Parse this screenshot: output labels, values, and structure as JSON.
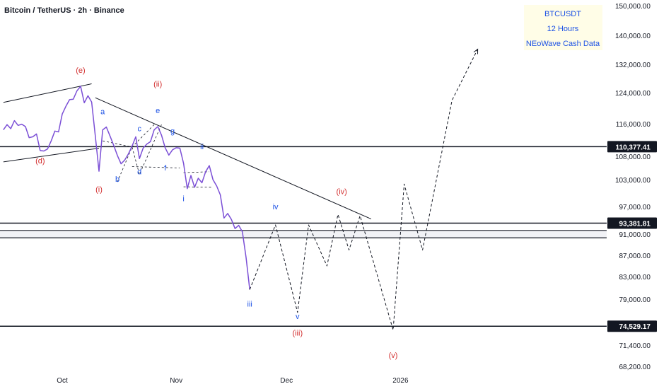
{
  "chart_data": {
    "type": "line",
    "title": "Bitcoin / TetherUS · 2h · Binance",
    "info_box": [
      "BTCUSDT",
      "12 Hours",
      "NEoWave Cash Data"
    ],
    "y_tick_labels": [
      150000,
      140000,
      132000,
      124000,
      116000,
      108000,
      103000,
      97000,
      91000,
      87000,
      83000,
      79000,
      71400,
      68200
    ],
    "y_tick_text": [
      "150,000.00",
      "140,000.00",
      "132,000.00",
      "124,000.00",
      "116,000.00",
      "108,000.00",
      "103,000.00",
      "97,000.00",
      "91,000.00",
      "87,000.00",
      "83,000.00",
      "79,000.00",
      "71,400.00",
      "68,200.00"
    ],
    "x_tick_labels": [
      "Oct",
      "Nov",
      "Dec",
      "2026"
    ],
    "x_tick_dates": [
      "2025-10-01",
      "2025-11-01",
      "2025-12-01",
      "2026-01-01"
    ],
    "price_levels": [
      {
        "value": 110377.41,
        "label": "110,377.41"
      },
      {
        "value": 93381.81,
        "label": "93,381.81"
      },
      {
        "value": 74529.17,
        "label": "74,529.17"
      }
    ],
    "support_band": [
      91800,
      90300
    ],
    "series": [
      {
        "values": [
          [
            "2025-09-15",
            114500
          ],
          [
            "2025-09-16",
            115800
          ],
          [
            "2025-09-17",
            114800
          ],
          [
            "2025-09-18",
            116800
          ],
          [
            "2025-09-19",
            115600
          ],
          [
            "2025-09-20",
            115900
          ],
          [
            "2025-09-21",
            115300
          ],
          [
            "2025-09-22",
            112600
          ],
          [
            "2025-09-23",
            112800
          ],
          [
            "2025-09-24",
            113500
          ],
          [
            "2025-09-25",
            109400
          ],
          [
            "2025-09-26",
            109300
          ],
          [
            "2025-09-27",
            109800
          ],
          [
            "2025-09-28",
            111800
          ],
          [
            "2025-09-29",
            114200
          ],
          [
            "2025-09-30",
            114000
          ],
          [
            "2025-10-01",
            118500
          ],
          [
            "2025-10-02",
            120500
          ],
          [
            "2025-10-03",
            122200
          ],
          [
            "2025-10-04",
            122300
          ],
          [
            "2025-10-05",
            124500
          ],
          [
            "2025-10-06",
            125800
          ],
          [
            "2025-10-07",
            121400
          ],
          [
            "2025-10-08",
            123200
          ],
          [
            "2025-10-09",
            121600
          ],
          [
            "2025-10-10",
            113000
          ],
          [
            "2025-10-11",
            104800
          ],
          [
            "2025-10-12",
            114500
          ],
          [
            "2025-10-13",
            115200
          ],
          [
            "2025-10-14",
            113000
          ],
          [
            "2025-10-15",
            110700
          ],
          [
            "2025-10-16",
            108200
          ],
          [
            "2025-10-17",
            106400
          ],
          [
            "2025-10-18",
            107200
          ],
          [
            "2025-10-19",
            108600
          ],
          [
            "2025-10-20",
            110500
          ],
          [
            "2025-10-21",
            112800
          ],
          [
            "2025-10-22",
            107500
          ],
          [
            "2025-10-23",
            110000
          ],
          [
            "2025-10-24",
            111000
          ],
          [
            "2025-10-25",
            111600
          ],
          [
            "2025-10-26",
            114500
          ],
          [
            "2025-10-27",
            115300
          ],
          [
            "2025-10-28",
            113200
          ],
          [
            "2025-10-29",
            110100
          ],
          [
            "2025-10-30",
            108300
          ],
          [
            "2025-10-31",
            109600
          ],
          [
            "2025-11-01",
            110100
          ],
          [
            "2025-11-02",
            110000
          ],
          [
            "2025-11-03",
            106500
          ],
          [
            "2025-11-04",
            101000
          ],
          [
            "2025-11-05",
            103900
          ],
          [
            "2025-11-06",
            101300
          ],
          [
            "2025-11-07",
            103300
          ],
          [
            "2025-11-08",
            102300
          ],
          [
            "2025-11-09",
            104700
          ],
          [
            "2025-11-10",
            106000
          ],
          [
            "2025-11-11",
            103000
          ],
          [
            "2025-11-12",
            101600
          ],
          [
            "2025-11-13",
            99600
          ],
          [
            "2025-11-14",
            94500
          ],
          [
            "2025-11-15",
            95500
          ],
          [
            "2025-11-16",
            94200
          ],
          [
            "2025-11-17",
            92200
          ],
          [
            "2025-11-18",
            92900
          ],
          [
            "2025-11-19",
            91500
          ],
          [
            "2025-11-20",
            86600
          ],
          [
            "2025-11-21",
            80700
          ]
        ]
      },
      {
        "values": [
          [
            "2025-11-21",
            80700
          ],
          [
            "2025-11-28",
            93000
          ],
          [
            "2025-12-04",
            76800
          ],
          [
            "2025-12-07",
            93000
          ],
          [
            "2025-12-12",
            85000
          ],
          [
            "2025-12-15",
            95300
          ],
          [
            "2025-12-18",
            88000
          ],
          [
            "2025-12-21",
            95000
          ],
          [
            "2025-12-30",
            73900
          ],
          [
            "2026-01-02",
            102000
          ],
          [
            "2026-01-07",
            88000
          ],
          [
            "2026-01-15",
            122000
          ],
          [
            "2026-01-22",
            136200
          ]
        ]
      }
    ],
    "wave_labels": [
      {
        "text": "(e)",
        "date": "2025-10-06",
        "value": 129600,
        "color": "#d32f2f"
      },
      {
        "text": "(d)",
        "date": "2025-09-25",
        "value": 106500,
        "color": "#d32f2f"
      },
      {
        "text": "(i)",
        "date": "2025-10-11",
        "value": 100200,
        "color": "#d32f2f"
      },
      {
        "text": "(ii)",
        "date": "2025-10-27",
        "value": 125700,
        "color": "#d32f2f"
      },
      {
        "text": "a",
        "date": "2025-10-12",
        "value": 118500,
        "color": "#1e53e5"
      },
      {
        "text": "b",
        "date": "2025-10-16",
        "value": 102500,
        "color": "#1e53e5"
      },
      {
        "text": "c",
        "date": "2025-10-22",
        "value": 114200,
        "color": "#1e53e5"
      },
      {
        "text": "d",
        "date": "2025-10-22",
        "value": 104100,
        "color": "#1e53e5"
      },
      {
        "text": "e",
        "date": "2025-10-27",
        "value": 118700,
        "color": "#1e53e5"
      },
      {
        "text": "f",
        "date": "2025-10-29",
        "value": 105000,
        "color": "#1e53e5"
      },
      {
        "text": "g",
        "date": "2025-10-31",
        "value": 113600,
        "color": "#1e53e5"
      },
      {
        "text": "ii",
        "date": "2025-11-08",
        "value": 109700,
        "color": "#1e53e5"
      },
      {
        "text": "i",
        "date": "2025-11-03",
        "value": 98200,
        "color": "#1e53e5"
      },
      {
        "text": "iii",
        "date": "2025-11-21",
        "value": 77800,
        "color": "#1e53e5"
      },
      {
        "text": "iv",
        "date": "2025-11-28",
        "value": 96400,
        "color": "#1e53e5"
      },
      {
        "text": "v",
        "date": "2025-12-04",
        "value": 75700,
        "color": "#1e53e5"
      },
      {
        "text": "(iii)",
        "date": "2025-12-04",
        "value": 73000,
        "color": "#d32f2f"
      },
      {
        "text": "(iv)",
        "date": "2025-12-16",
        "value": 99800,
        "color": "#d32f2f"
      },
      {
        "text": "(v)",
        "date": "2025-12-30",
        "value": 69500,
        "color": "#d32f2f"
      }
    ],
    "trendlines": [
      {
        "points": [
          [
            "2025-09-15",
            121500
          ],
          [
            "2025-10-09",
            126500
          ]
        ],
        "style": "solid"
      },
      {
        "points": [
          [
            "2025-09-15",
            106800
          ],
          [
            "2025-10-11",
            110000
          ]
        ],
        "style": "solid"
      },
      {
        "points": [
          [
            "2025-10-10",
            122700
          ],
          [
            "2025-12-24",
            94300
          ]
        ],
        "style": "solid"
      },
      {
        "points": [
          [
            "2025-10-16",
            102500
          ],
          [
            "2025-10-20",
            110300
          ],
          [
            "2025-10-22",
            104100
          ],
          [
            "2025-10-28",
            115800
          ]
        ],
        "style": "dashed"
      },
      {
        "points": [
          [
            "2025-10-12",
            111800
          ],
          [
            "2025-10-20",
            110300
          ],
          [
            "2025-10-26",
            115800
          ]
        ],
        "style": "dashed"
      },
      {
        "points": [
          [
            "2025-10-20",
            105800
          ],
          [
            "2025-11-02",
            105500
          ]
        ],
        "style": "dashed"
      },
      {
        "points": [
          [
            "2025-11-03",
            101400
          ],
          [
            "2025-11-11",
            101300
          ]
        ],
        "style": "dashed"
      },
      {
        "points": [
          [
            "2025-11-03",
            104500
          ],
          [
            "2025-11-10",
            104700
          ]
        ],
        "style": "dashed"
      }
    ],
    "colors": {
      "price": "#7b4fd6",
      "projection": "#131722",
      "up_label": "#d32f2f",
      "down_label": "#1e53e5",
      "tag_bg": "#131722"
    },
    "grid": false
  }
}
